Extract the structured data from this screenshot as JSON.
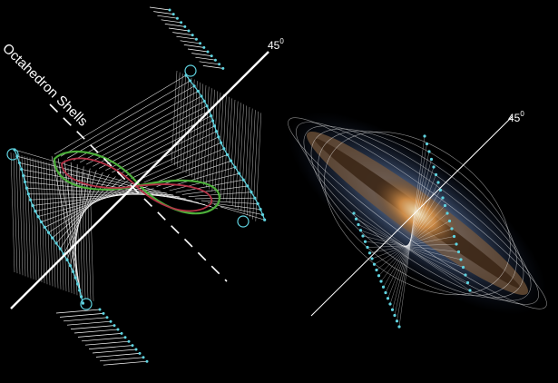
{
  "labels": {
    "shells": "Octahedron Shells",
    "left_angle": "45",
    "right_angle": "45",
    "degree_symbol": "0"
  },
  "colors": {
    "background": "#000000",
    "mesh": "#ffffff",
    "node": "#5fd3e0",
    "curve_green": "#4caf3a",
    "curve_red": "#b43246",
    "galaxy_core": "#d28a3c",
    "galaxy_halo": "#5a7fb0"
  }
}
